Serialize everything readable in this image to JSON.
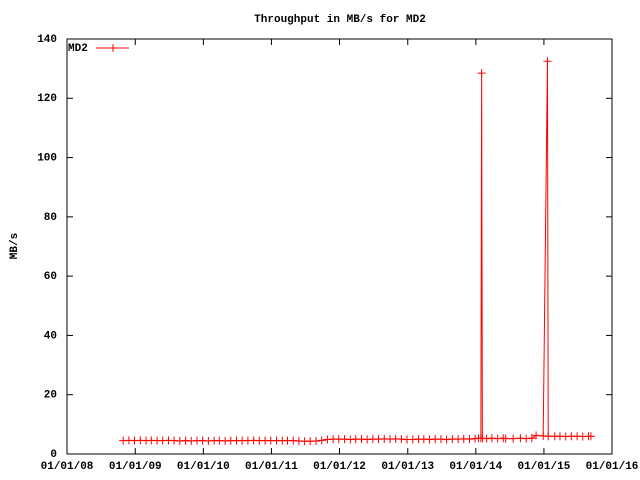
{
  "chart_data": {
    "type": "line",
    "title": "Throughput in MB/s for MD2",
    "ylabel": "MB/s",
    "xlim": [
      "2008-01-01",
      "2016-01-01"
    ],
    "xticks": [
      {
        "value": "2008-01-01",
        "label": "01/01/08"
      },
      {
        "value": "2009-01-01",
        "label": "01/01/09"
      },
      {
        "value": "2010-01-01",
        "label": "01/01/10"
      },
      {
        "value": "2011-01-01",
        "label": "01/01/11"
      },
      {
        "value": "2012-01-01",
        "label": "01/01/12"
      },
      {
        "value": "2013-01-01",
        "label": "01/01/13"
      },
      {
        "value": "2014-01-01",
        "label": "01/01/14"
      },
      {
        "value": "2015-01-01",
        "label": "01/01/15"
      },
      {
        "value": "2016-01-01",
        "label": "01/01/16"
      }
    ],
    "ylim": [
      0,
      140
    ],
    "yticks": [
      0,
      20,
      40,
      60,
      80,
      100,
      120,
      140
    ],
    "grid": false,
    "legend": "top-left",
    "series": [
      {
        "name": "MD2",
        "color": "#ff0000",
        "x": [
          "2008-10-28",
          "2008-11-28",
          "2008-12-28",
          "2009-01-28",
          "2009-02-28",
          "2009-03-28",
          "2009-04-28",
          "2009-05-28",
          "2009-06-28",
          "2009-07-28",
          "2009-08-28",
          "2009-09-28",
          "2009-10-28",
          "2009-11-28",
          "2009-12-28",
          "2010-01-28",
          "2010-02-28",
          "2010-03-28",
          "2010-04-28",
          "2010-05-28",
          "2010-06-28",
          "2010-07-28",
          "2010-08-28",
          "2010-09-28",
          "2010-10-28",
          "2010-11-28",
          "2010-12-28",
          "2011-01-28",
          "2011-02-28",
          "2011-03-28",
          "2011-04-28",
          "2011-05-28",
          "2011-06-28",
          "2011-07-28",
          "2011-08-28",
          "2011-09-28",
          "2011-10-28",
          "2011-11-28",
          "2011-12-28",
          "2012-01-28",
          "2012-02-28",
          "2012-03-28",
          "2012-04-28",
          "2012-05-28",
          "2012-06-28",
          "2012-07-28",
          "2012-08-28",
          "2012-09-28",
          "2012-10-28",
          "2012-11-28",
          "2012-12-28",
          "2013-01-28",
          "2013-02-28",
          "2013-03-28",
          "2013-04-28",
          "2013-05-28",
          "2013-06-28",
          "2013-07-28",
          "2013-08-28",
          "2013-09-28",
          "2013-10-28",
          "2013-11-28",
          "2013-12-28",
          "2014-01-15",
          "2014-01-28",
          "2014-02-01",
          "2014-02-05",
          "2014-02-28",
          "2014-03-28",
          "2014-04-28",
          "2014-05-28",
          "2014-06-10",
          "2014-07-20",
          "2014-08-28",
          "2014-09-28",
          "2014-10-28",
          "2014-11-20",
          "2014-12-28",
          "2015-01-20",
          "2015-01-24",
          "2015-02-28",
          "2015-03-28",
          "2015-04-28",
          "2015-05-28",
          "2015-06-28",
          "2015-07-28",
          "2015-08-28",
          "2015-09-10"
        ],
        "values": [
          4.5,
          4.6,
          4.5,
          4.6,
          4.5,
          4.6,
          4.5,
          4.5,
          4.6,
          4.5,
          4.4,
          4.5,
          4.4,
          4.5,
          4.5,
          4.4,
          4.5,
          4.5,
          4.4,
          4.5,
          4.5,
          4.5,
          4.5,
          4.6,
          4.5,
          4.5,
          4.5,
          4.5,
          4.5,
          4.5,
          4.5,
          4.4,
          4.3,
          4.3,
          4.4,
          4.6,
          4.9,
          5.0,
          5.0,
          5.0,
          4.9,
          5.0,
          5.0,
          4.9,
          5.0,
          5.0,
          5.1,
          5.0,
          5.1,
          5.0,
          4.9,
          4.9,
          5.0,
          5.0,
          4.9,
          5.0,
          5.0,
          4.9,
          5.0,
          5.0,
          5.1,
          5.0,
          5.2,
          5.3,
          5.3,
          128.5,
          5.3,
          5.2,
          5.3,
          5.2,
          5.3,
          5.2,
          5.2,
          5.3,
          5.2,
          5.3,
          6.3,
          6.1,
          132.5,
          6.0,
          6.0,
          6.0,
          5.9,
          6.0,
          6.0,
          5.9,
          6.0,
          6.0
        ]
      }
    ]
  }
}
